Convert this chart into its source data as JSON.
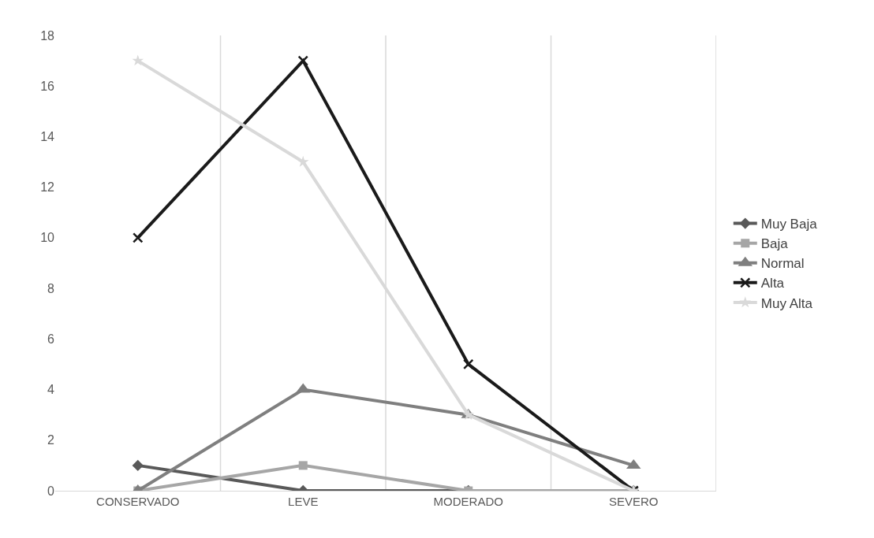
{
  "chart_data": {
    "type": "line",
    "categories": [
      "CONSERVADO",
      "LEVE",
      "MODERADO",
      "SEVERO"
    ],
    "series": [
      {
        "name": "Muy Baja",
        "color": "#595959",
        "marker": "diamond",
        "values": [
          1,
          0,
          0,
          0
        ]
      },
      {
        "name": "Baja",
        "color": "#a6a6a6",
        "marker": "square",
        "values": [
          0,
          1,
          0,
          0
        ]
      },
      {
        "name": "Normal",
        "color": "#7f7f7f",
        "marker": "triangle",
        "values": [
          0,
          4,
          3,
          1
        ]
      },
      {
        "name": "Alta",
        "color": "#1a1a1a",
        "marker": "cross",
        "values": [
          10,
          17,
          5,
          0
        ]
      },
      {
        "name": "Muy Alta",
        "color": "#d9d9d9",
        "marker": "star",
        "values": [
          17,
          13,
          3,
          0
        ]
      }
    ],
    "ylim": [
      0,
      18
    ],
    "yticks": [
      0,
      2,
      4,
      6,
      8,
      10,
      12,
      14,
      16,
      18
    ],
    "grid": "x",
    "legend": "right",
    "line_style": "solid"
  }
}
